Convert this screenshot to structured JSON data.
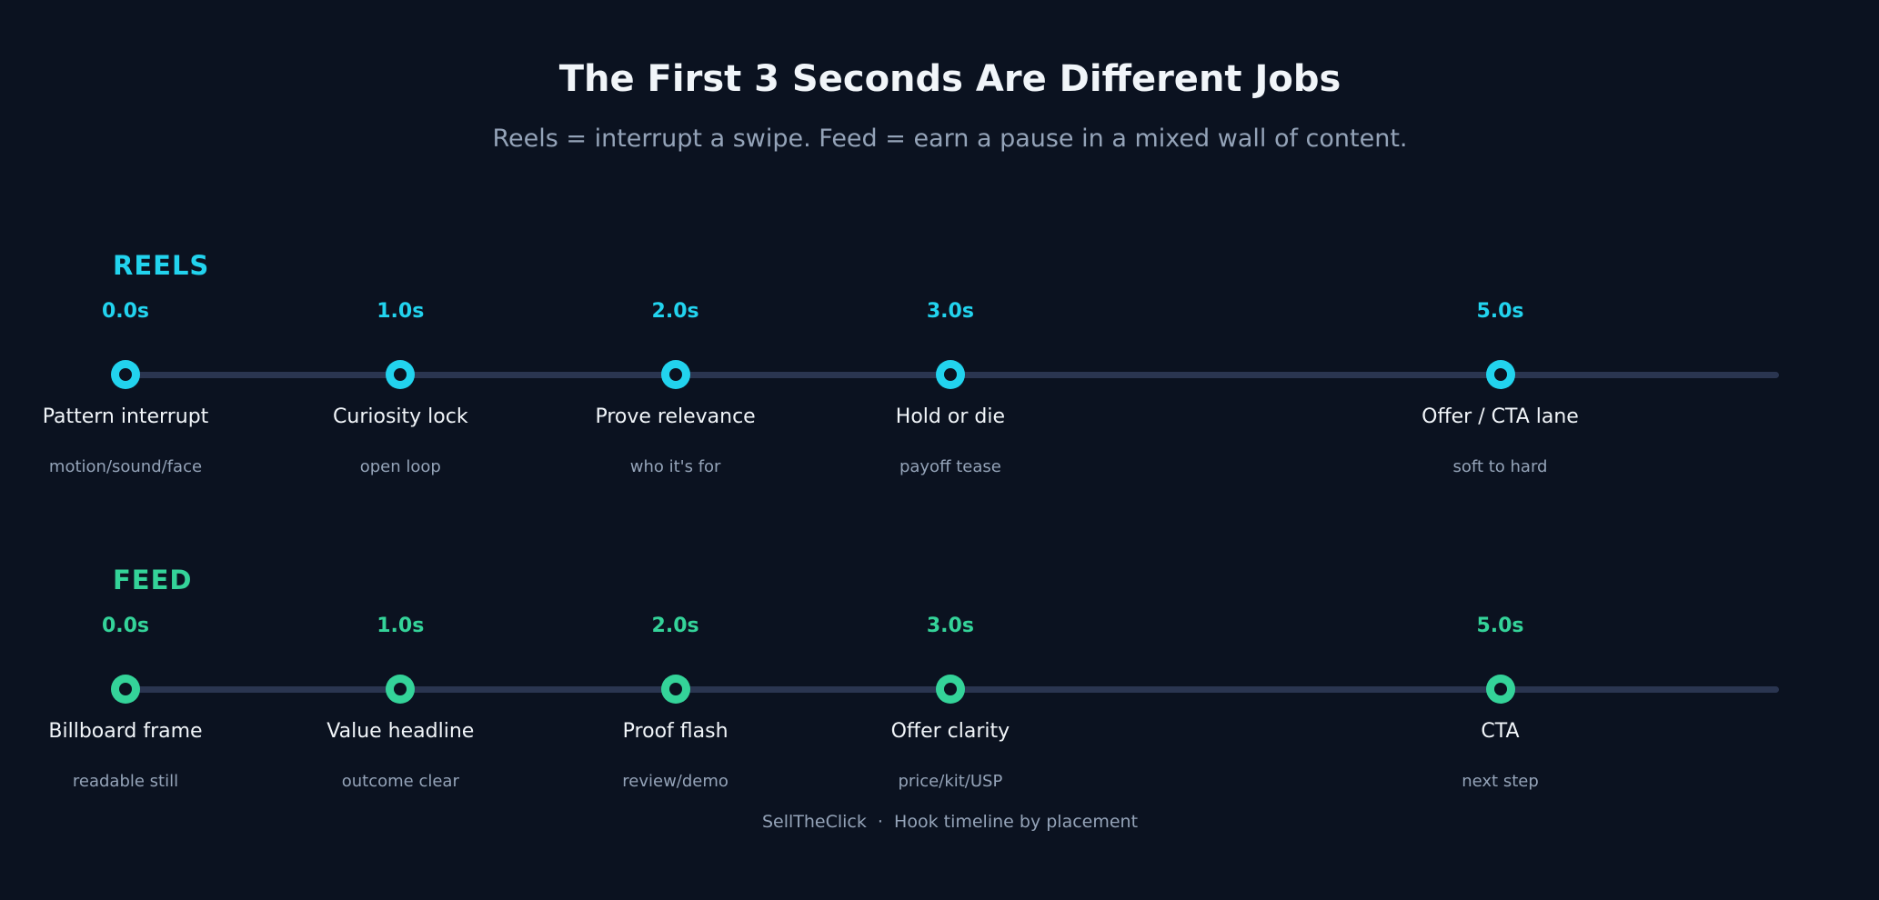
{
  "title": "The First 3 Seconds Are Different Jobs",
  "subtitle": "Reels = interrupt a swipe. Feed = earn a pause in a mixed wall of content.",
  "footer": "SellTheClick  ·  Hook timeline by placement",
  "lanes": [
    {
      "name": "REELS",
      "color": "#22d3ee",
      "stops": [
        {
          "time": "0.0s",
          "label": "Pattern interrupt",
          "sub": "motion/sound/face"
        },
        {
          "time": "1.0s",
          "label": "Curiosity lock",
          "sub": "open loop"
        },
        {
          "time": "2.0s",
          "label": "Prove relevance",
          "sub": "who it's for"
        },
        {
          "time": "3.0s",
          "label": "Hold or die",
          "sub": "payoff tease"
        },
        {
          "time": "5.0s",
          "label": "Offer / CTA lane",
          "sub": "soft to hard"
        }
      ]
    },
    {
      "name": "FEED",
      "color": "#34d399",
      "stops": [
        {
          "time": "0.0s",
          "label": "Billboard frame",
          "sub": "readable still"
        },
        {
          "time": "1.0s",
          "label": "Value headline",
          "sub": "outcome clear"
        },
        {
          "time": "2.0s",
          "label": "Proof flash",
          "sub": "review/demo"
        },
        {
          "time": "3.0s",
          "label": "Offer clarity",
          "sub": "price/kit/USP"
        },
        {
          "time": "5.0s",
          "label": "CTA",
          "sub": "next step"
        }
      ]
    }
  ]
}
